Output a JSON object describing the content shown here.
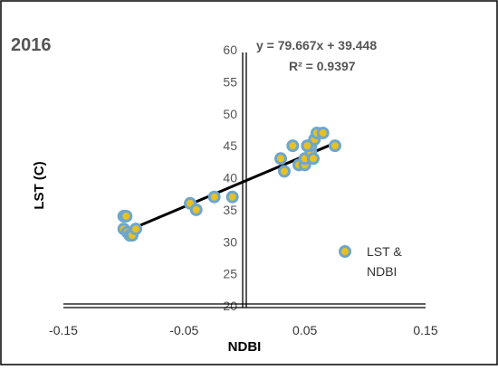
{
  "chart_data": {
    "type": "scatter",
    "title": "2016",
    "xlabel": "NDBI",
    "ylabel": "LST (C)",
    "xlim": [
      -0.15,
      0.15
    ],
    "ylim": [
      20,
      60
    ],
    "x_ticks": [
      "-0.15",
      "-0.05",
      "0.05",
      "0.15"
    ],
    "y_ticks": [
      "20",
      "25",
      "30",
      "35",
      "40",
      "45",
      "50",
      "55",
      "60"
    ],
    "legend_label_lines": [
      "LST &",
      "NDBI"
    ],
    "legend_position": "right",
    "grid": false,
    "equation_line1": "y = 79.667x + 39.448",
    "equation_line2": "R² = 0.9397",
    "trendline": {
      "slope": 79.667,
      "intercept": 39.448,
      "x_range": [
        -0.1,
        0.078
      ]
    },
    "marker_fill": "#e8c020",
    "marker_stroke": "#6fa6cc",
    "line_color": "#000000",
    "series": [
      {
        "name": "LST & NDBI",
        "points": [
          [
            -0.1,
            34
          ],
          [
            -0.098,
            34
          ],
          [
            -0.1,
            32
          ],
          [
            -0.097,
            31.5
          ],
          [
            -0.095,
            31
          ],
          [
            -0.093,
            31
          ],
          [
            -0.09,
            32
          ],
          [
            -0.045,
            36
          ],
          [
            -0.04,
            35
          ],
          [
            -0.025,
            37
          ],
          [
            -0.01,
            37
          ],
          [
            0.03,
            43
          ],
          [
            0.033,
            41
          ],
          [
            0.04,
            45
          ],
          [
            0.045,
            42
          ],
          [
            0.05,
            42
          ],
          [
            0.05,
            43
          ],
          [
            0.055,
            44
          ],
          [
            0.055,
            45
          ],
          [
            0.058,
            46
          ],
          [
            0.06,
            47
          ],
          [
            0.065,
            47
          ],
          [
            0.075,
            45
          ],
          [
            0.052,
            45
          ],
          [
            0.057,
            43
          ]
        ]
      }
    ]
  }
}
